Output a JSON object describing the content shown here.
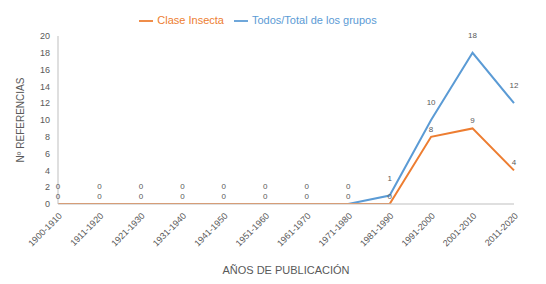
{
  "chart_data": {
    "type": "line",
    "x_label": "AÑOS DE PUBLICACIÓN",
    "y_label": "Nº REFERENCIAS",
    "categories": [
      "1900-1910",
      "1911-1920",
      "1921-1930",
      "1931-1940",
      "1941-1950",
      "1951-1960",
      "1961-1970",
      "1971-1980",
      "1981-1990",
      "1991-2000",
      "2001-2010",
      "2011-2020"
    ],
    "series": [
      {
        "name": "Todos/Total de los grupos",
        "color": "#5b9bd5",
        "values": [
          0,
          0,
          0,
          0,
          0,
          0,
          0,
          0,
          1,
          10,
          18,
          12
        ]
      },
      {
        "name": "Clase Insecta",
        "color": "#ed7d31",
        "values": [
          0,
          0,
          0,
          0,
          0,
          0,
          0,
          0,
          0,
          8,
          9,
          4
        ]
      }
    ],
    "ylim": [
      0,
      20
    ],
    "yticks": [
      0,
      2,
      4,
      6,
      8,
      10,
      12,
      14,
      16,
      18,
      20
    ],
    "grid": false,
    "legend": "top",
    "data_labels": true
  }
}
